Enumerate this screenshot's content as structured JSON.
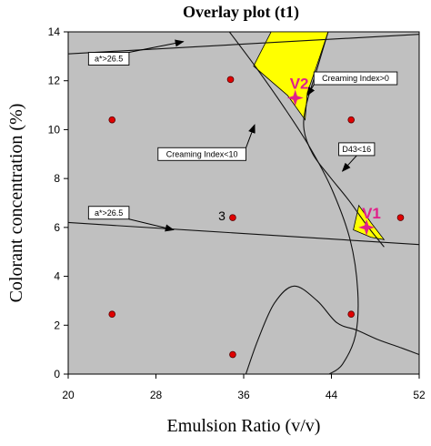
{
  "chart_data": {
    "type": "scatter",
    "title": "Overlay plot (t1)",
    "xlabel": "Emulsion Ratio (v/v)",
    "ylabel": "Colorant concentration (%)",
    "xlim": [
      20,
      52
    ],
    "ylim": [
      0,
      14
    ],
    "x_ticks": [
      "20",
      "28",
      "36",
      "44",
      "52"
    ],
    "x_tick_values": [
      20,
      28,
      36,
      44,
      52
    ],
    "y_ticks": [
      "0",
      "2",
      "4",
      "6",
      "8",
      "10",
      "12",
      "14"
    ],
    "y_tick_values": [
      0,
      2,
      4,
      6,
      8,
      10,
      12,
      14
    ],
    "grid": false,
    "background_color": "#c0c0c0",
    "feasible_region_color": "#ffff00",
    "design_point_color": "#e00000",
    "vertex_color": "#e0208a",
    "design_points": [
      {
        "x": 24,
        "y": 10.4
      },
      {
        "x": 34.8,
        "y": 12.05
      },
      {
        "x": 45.8,
        "y": 10.4
      },
      {
        "x": 35,
        "y": 6.4,
        "label": "3"
      },
      {
        "x": 50.3,
        "y": 6.4
      },
      {
        "x": 24,
        "y": 2.45
      },
      {
        "x": 45.8,
        "y": 2.45
      },
      {
        "x": 35,
        "y": 0.8
      }
    ],
    "constraint_lines": [
      {
        "label": "a*>26.5",
        "points": [
          [
            20,
            13.1
          ],
          [
            52,
            13.9
          ]
        ]
      },
      {
        "label": "a*>26.5",
        "points": [
          [
            20,
            6.2
          ],
          [
            52,
            5.3
          ]
        ]
      }
    ],
    "constraint_curves": [
      {
        "label": "Creaming Index<10",
        "points": [
          [
            34.7,
            14
          ],
          [
            37.2,
            12.5
          ],
          [
            39.7,
            10.9
          ],
          [
            42,
            9.3
          ],
          [
            44,
            7.6
          ],
          [
            45.7,
            5.5
          ],
          [
            46.4,
            3.4
          ],
          [
            46.2,
            1.6
          ],
          [
            45,
            0.4
          ],
          [
            43.8,
            0
          ]
        ]
      },
      {
        "label": "Creaming Index>0",
        "points": [
          [
            36.2,
            0
          ],
          [
            37.3,
            1.4
          ],
          [
            38.8,
            2.9
          ],
          [
            40.6,
            3.6
          ],
          [
            42.7,
            3.0
          ],
          [
            44.5,
            2.1
          ],
          [
            46.3,
            1.8
          ],
          [
            48.3,
            1.4
          ],
          [
            50.2,
            1.1
          ],
          [
            52,
            0.8
          ]
        ]
      },
      {
        "label": "D43<16",
        "points": [
          [
            43.7,
            14
          ],
          [
            42.7,
            12.5
          ],
          [
            41.7,
            11
          ],
          [
            41.5,
            10
          ],
          [
            42.3,
            9
          ],
          [
            43.8,
            8.1
          ],
          [
            45.6,
            7.1
          ],
          [
            47.2,
            6.1
          ],
          [
            48.8,
            5.2
          ]
        ]
      }
    ],
    "feasible_regions": [
      {
        "vertex_label": "V2",
        "vertex": {
          "x": 40.7,
          "y": 11.3
        },
        "polygon": [
          [
            36.9,
            12.6
          ],
          [
            38.5,
            14.0
          ],
          [
            43.7,
            14.0
          ],
          [
            42.8,
            12.8
          ],
          [
            41.8,
            11.5
          ],
          [
            41.6,
            10.4
          ],
          [
            40.0,
            11.4
          ]
        ]
      },
      {
        "vertex_label": "V1",
        "vertex": {
          "x": 47.2,
          "y": 6.0
        },
        "polygon": [
          [
            46.5,
            6.9
          ],
          [
            47.6,
            6.2
          ],
          [
            48.8,
            5.5
          ],
          [
            47.6,
            5.6
          ],
          [
            46.0,
            5.9
          ]
        ]
      }
    ],
    "annotations": [
      {
        "text": "a*>26.5",
        "box": true,
        "arrow_to": {
          "x": 30.5,
          "y": 13.6
        },
        "box_at": {
          "x": 23.7,
          "y": 12.9
        }
      },
      {
        "text": "Creaming Index>0",
        "box": true,
        "arrow_to": {
          "x": 41.8,
          "y": 11.4
        },
        "box_at": {
          "x": 46.2,
          "y": 12.1
        }
      },
      {
        "text": "Creaming Index<10",
        "box": true,
        "arrow_to": {
          "x": 37.0,
          "y": 10.2
        },
        "box_at": {
          "x": 32.2,
          "y": 9.0
        }
      },
      {
        "text": "D43<16",
        "box": true,
        "arrow_to": {
          "x": 45.0,
          "y": 8.3
        },
        "box_at": {
          "x": 46.3,
          "y": 9.2
        }
      },
      {
        "text": "a*>26.5",
        "box": true,
        "arrow_to": {
          "x": 29.6,
          "y": 5.9
        },
        "box_at": {
          "x": 23.7,
          "y": 6.6
        }
      }
    ]
  }
}
